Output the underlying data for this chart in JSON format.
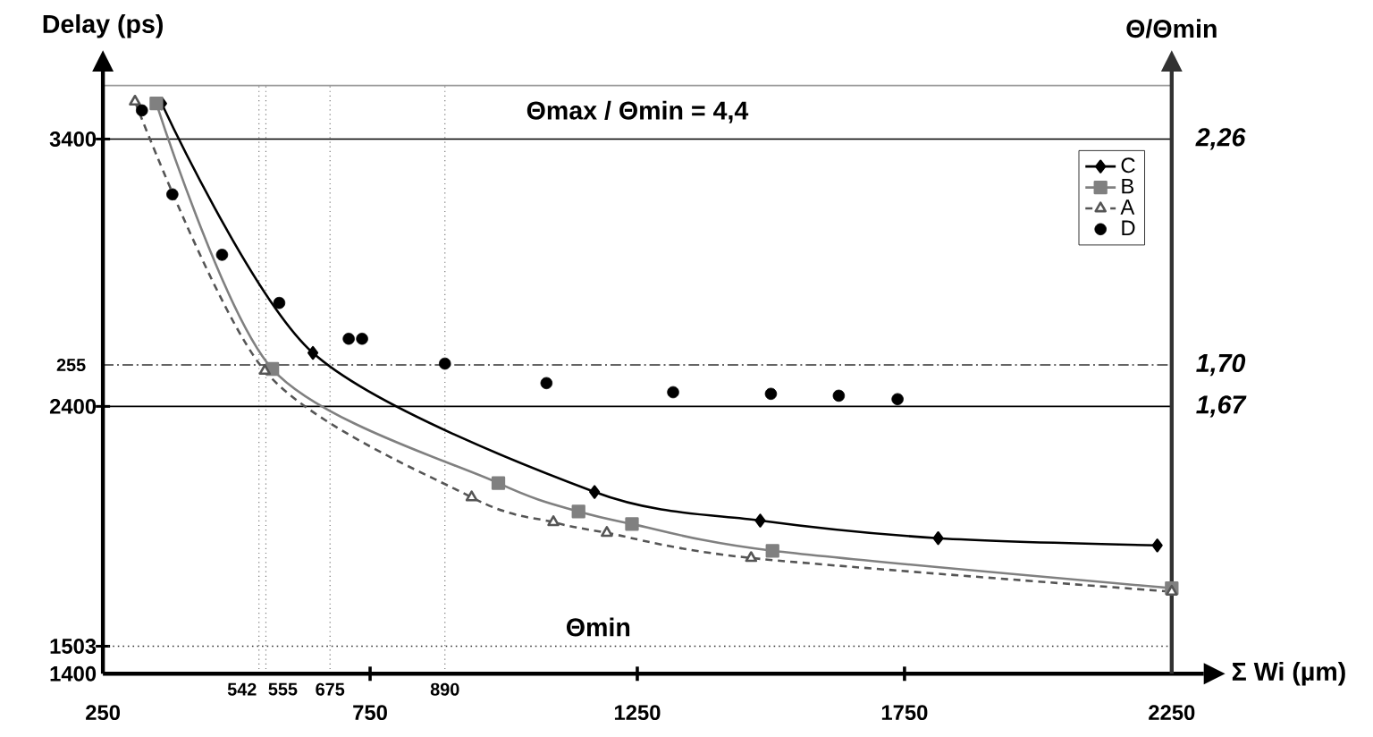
{
  "chart_data": {
    "type": "line",
    "ylabel": "Delay (ps)",
    "y2label": "Θ/Θmin",
    "xlabel": "Σ Wi (µm)",
    "xlim": [
      250,
      2250
    ],
    "ylim": [
      1400,
      3600
    ],
    "xticks": [
      250,
      750,
      1250,
      1750,
      2250
    ],
    "yticks": [
      1400,
      1503,
      2400,
      3400
    ],
    "legend": "top right",
    "annotations": [
      "Θmax / Θmin = 4,4",
      {
        "text": "Θmin",
        "x": 1177,
        "y": 1503
      },
      {
        "text": "2,26",
        "x": 2250,
        "y": 3400
      },
      {
        "text": "1,70",
        "x": 2250,
        "y": 2555
      },
      {
        "text": "1,67",
        "x": 2250,
        "y": 2400
      },
      {
        "text": "255",
        "x": 250,
        "y": 2555
      }
    ],
    "ref_lines": [
      {
        "axis": "y",
        "value": 3600,
        "color": "#999999",
        "line_style": "solid"
      },
      {
        "axis": "y",
        "value": 3400,
        "color": "#000000",
        "line_style": "solid"
      },
      {
        "axis": "y",
        "value": 2555,
        "color": "#333333",
        "line_style": "dashdot"
      },
      {
        "axis": "y",
        "value": 2400,
        "color": "#000000",
        "line_style": "solid"
      },
      {
        "axis": "y",
        "value": 1503,
        "color": "#333333",
        "line_style": "dotted"
      },
      {
        "axis": "x",
        "value": 542,
        "label": "542",
        "color": "#777777",
        "line_style": "dotted"
      },
      {
        "axis": "x",
        "value": 555,
        "label": "555",
        "color": "#777777",
        "line_style": "dotted"
      },
      {
        "axis": "x",
        "value": 675,
        "label": "675",
        "color": "#777777",
        "line_style": "dotted"
      },
      {
        "axis": "x",
        "value": 890,
        "label": "890",
        "color": "#777777",
        "line_style": "dotted"
      }
    ],
    "series": [
      {
        "name": "C",
        "color": "#000000",
        "marker": "diamond",
        "line_style": "solid",
        "x": [
          360,
          643,
          1170,
          1480,
          1813,
          2223
        ],
        "values": [
          3533,
          2600,
          2080,
          1973,
          1907,
          1880
        ]
      },
      {
        "name": "B",
        "color": "#808080",
        "marker": "square",
        "line_style": "solid",
        "x": [
          350,
          567,
          990,
          1140,
          1240,
          1503,
          2250
        ],
        "values": [
          3533,
          2540,
          2113,
          2007,
          1960,
          1860,
          1720
        ]
      },
      {
        "name": "A",
        "color": "#555555",
        "marker": "triangle",
        "line_style": "dashed",
        "x": [
          310,
          553,
          940,
          1093,
          1193,
          1463,
          2250
        ],
        "values": [
          3540,
          2533,
          2060,
          1967,
          1927,
          1833,
          1707
        ]
      },
      {
        "name": "D",
        "type": "scatter",
        "color": "#000000",
        "marker": "circle",
        "x": [
          323,
          380,
          473,
          580,
          643,
          710,
          735,
          890,
          1080,
          1317,
          1500,
          1627,
          1737
        ],
        "values": [
          3507,
          3193,
          2967,
          2787,
          null,
          2653,
          2653,
          2560,
          2487,
          2453,
          2447,
          2440,
          2427
        ]
      }
    ]
  }
}
